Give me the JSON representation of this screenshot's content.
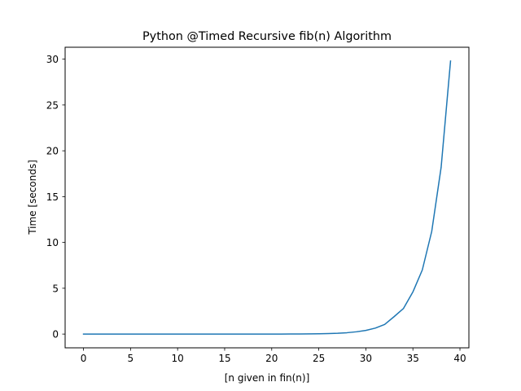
{
  "chart_data": {
    "type": "line",
    "title": "Python @Timed Recursive fib(n) Algorithm",
    "xlabel": "[n given in fin(n)]",
    "ylabel": "Time [seconds]",
    "xlim": [
      -1.95,
      40.95
    ],
    "ylim": [
      -1.5,
      31.3
    ],
    "xticks": [
      0,
      5,
      10,
      15,
      20,
      25,
      30,
      35,
      40
    ],
    "yticks": [
      0,
      5,
      10,
      15,
      20,
      25,
      30
    ],
    "grid": false,
    "series": [
      {
        "color": "#1f77b4",
        "x": [
          0,
          1,
          2,
          3,
          4,
          5,
          6,
          7,
          8,
          9,
          10,
          11,
          12,
          13,
          14,
          15,
          16,
          17,
          18,
          19,
          20,
          21,
          22,
          23,
          24,
          25,
          26,
          27,
          28,
          29,
          30,
          31,
          32,
          33,
          34,
          35,
          36,
          37,
          38,
          39
        ],
        "y": [
          0,
          0,
          0,
          0,
          0,
          0,
          0,
          0,
          0,
          0,
          0,
          0,
          0,
          0,
          0,
          0,
          0,
          0,
          0,
          0,
          0.003,
          0.005,
          0.008,
          0.013,
          0.02,
          0.035,
          0.055,
          0.09,
          0.15,
          0.25,
          0.4,
          0.65,
          1.05,
          1.9,
          2.8,
          4.6,
          7.0,
          11.2,
          18.2,
          29.8
        ]
      }
    ]
  }
}
